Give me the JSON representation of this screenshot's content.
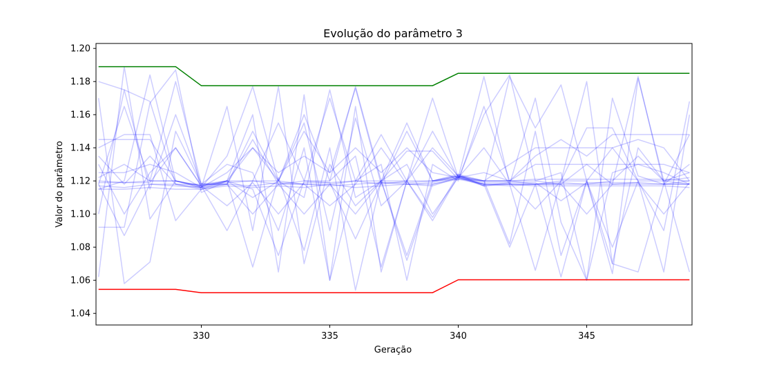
{
  "chart_data": {
    "type": "line",
    "title": "Evolução do parâmetro 3",
    "xlabel": "Geração",
    "ylabel": "Valor do parâmetro",
    "xlim": [
      325.9,
      349.1
    ],
    "ylim": [
      1.033,
      1.203
    ],
    "x_ticks": [
      330,
      335,
      340,
      345
    ],
    "x_tick_labels": [
      "330",
      "335",
      "340",
      "345"
    ],
    "y_ticks": [
      1.04,
      1.06,
      1.08,
      1.1,
      1.12,
      1.14,
      1.16,
      1.18,
      1.2
    ],
    "y_tick_labels": [
      "1.04",
      "1.06",
      "1.08",
      "1.10",
      "1.12",
      "1.14",
      "1.16",
      "1.18",
      "1.20"
    ],
    "grid": false,
    "x": [
      326,
      327,
      328,
      329,
      330,
      331,
      332,
      333,
      334,
      335,
      336,
      337,
      338,
      339,
      340,
      341,
      342,
      343,
      344,
      345,
      346,
      347,
      348,
      349
    ],
    "series": [
      {
        "role": "upper-bound",
        "color": "#008000",
        "values": [
          1.189,
          1.189,
          1.189,
          1.189,
          1.1775,
          1.1775,
          1.1775,
          1.1775,
          1.1775,
          1.1775,
          1.1775,
          1.1775,
          1.1775,
          1.1775,
          1.185,
          1.185,
          1.185,
          1.185,
          1.185,
          1.185,
          1.185,
          1.185,
          1.185,
          1.185
        ]
      },
      {
        "role": "lower-bound",
        "color": "#ff0000",
        "values": [
          1.0545,
          1.0545,
          1.0545,
          1.0545,
          1.0525,
          1.0525,
          1.0525,
          1.0525,
          1.0525,
          1.0525,
          1.0525,
          1.0525,
          1.0525,
          1.0525,
          1.0603,
          1.0603,
          1.0603,
          1.0603,
          1.0603,
          1.0603,
          1.0603,
          1.0603,
          1.0603,
          1.0603
        ]
      },
      {
        "role": "individual",
        "color": "#0000ff",
        "values": [
          1.117,
          1.116,
          1.118,
          1.117,
          1.116,
          1.118,
          1.117,
          1.119,
          1.118,
          1.117,
          1.118,
          1.119,
          1.118,
          1.119,
          1.123,
          1.118,
          1.117,
          1.118,
          1.119,
          1.118,
          1.118,
          1.119,
          1.118,
          1.118
        ]
      },
      {
        "role": "individual",
        "color": "#0000ff",
        "values": [
          1.115,
          1.115,
          1.116,
          1.115,
          1.115,
          1.117,
          1.116,
          1.117,
          1.116,
          1.118,
          1.116,
          1.117,
          1.118,
          1.117,
          1.122,
          1.117,
          1.118,
          1.117,
          1.117,
          1.117,
          1.117,
          1.117,
          1.117,
          1.116
        ]
      },
      {
        "role": "individual",
        "color": "#0000ff",
        "values": [
          1.12,
          1.119,
          1.12,
          1.12,
          1.117,
          1.119,
          1.12,
          1.118,
          1.12,
          1.119,
          1.12,
          1.118,
          1.12,
          1.12,
          1.124,
          1.12,
          1.12,
          1.121,
          1.121,
          1.121,
          1.121,
          1.121,
          1.121,
          1.12
        ]
      },
      {
        "role": "individual",
        "color": "#0000ff",
        "values": [
          1.18,
          1.175,
          1.168,
          1.118,
          1.116,
          1.135,
          1.177,
          1.12,
          1.15,
          1.125,
          1.176,
          1.118,
          1.15,
          1.12,
          1.121,
          1.16,
          1.184,
          1.12,
          1.118,
          1.13,
          1.118,
          1.183,
          1.118,
          1.13
        ]
      },
      {
        "role": "individual",
        "color": "#0000ff",
        "values": [
          1.062,
          1.189,
          1.097,
          1.12,
          1.116,
          1.12,
          1.068,
          1.122,
          1.078,
          1.14,
          1.054,
          1.12,
          1.072,
          1.118,
          1.122,
          1.118,
          1.08,
          1.118,
          1.062,
          1.12,
          1.07,
          1.065,
          1.118,
          1.12
        ]
      },
      {
        "role": "individual",
        "color": "#0000ff",
        "values": [
          1.092,
          1.092,
          1.167,
          1.187,
          1.113,
          1.12,
          1.16,
          1.065,
          1.172,
          1.06,
          1.165,
          1.065,
          1.12,
          1.17,
          1.122,
          1.183,
          1.118,
          1.17,
          1.095,
          1.06,
          1.17,
          1.123,
          1.118,
          1.148
        ]
      },
      {
        "role": "individual",
        "color": "#0000ff",
        "values": [
          1.17,
          1.058,
          1.071,
          1.15,
          1.118,
          1.118,
          1.15,
          1.12,
          1.155,
          1.09,
          1.158,
          1.105,
          1.12,
          1.14,
          1.123,
          1.117,
          1.183,
          1.152,
          1.178,
          1.12,
          1.14,
          1.12,
          1.065,
          1.16
        ]
      },
      {
        "role": "individual",
        "color": "#0000ff",
        "values": [
          1.115,
          1.12,
          1.184,
          1.12,
          1.116,
          1.165,
          1.09,
          1.177,
          1.07,
          1.13,
          1.105,
          1.12,
          1.075,
          1.12,
          1.122,
          1.14,
          1.118,
          1.066,
          1.12,
          1.18,
          1.07,
          1.14,
          1.12,
          1.065
        ]
      },
      {
        "role": "individual",
        "color": "#0000ff",
        "values": [
          1.14,
          1.148,
          1.148,
          1.096,
          1.115,
          1.12,
          1.115,
          1.075,
          1.12,
          1.17,
          1.12,
          1.148,
          1.12,
          1.096,
          1.123,
          1.12,
          1.082,
          1.15,
          1.075,
          1.12,
          1.064,
          1.182,
          1.12,
          1.122
        ]
      },
      {
        "role": "individual",
        "color": "#0000ff",
        "values": [
          1.1,
          1.175,
          1.115,
          1.16,
          1.118,
          1.13,
          1.125,
          1.09,
          1.14,
          1.06,
          1.12,
          1.13,
          1.06,
          1.13,
          1.12,
          1.165,
          1.12,
          1.12,
          1.125,
          1.06,
          1.125,
          1.13,
          1.125,
          1.118
        ]
      },
      {
        "role": "individual",
        "color": "#0000ff",
        "values": [
          1.13,
          1.1,
          1.125,
          1.14,
          1.117,
          1.12,
          1.14,
          1.12,
          1.16,
          1.12,
          1.135,
          1.068,
          1.12,
          1.15,
          1.122,
          1.12,
          1.13,
          1.14,
          1.14,
          1.14,
          1.14,
          1.145,
          1.14,
          1.12
        ]
      },
      {
        "role": "individual",
        "color": "#0000ff",
        "values": [
          1.122,
          1.13,
          1.12,
          1.18,
          1.118,
          1.12,
          1.11,
          1.12,
          1.11,
          1.175,
          1.11,
          1.12,
          1.138,
          1.138,
          1.121,
          1.12,
          1.12,
          1.13,
          1.13,
          1.13,
          1.13,
          1.13,
          1.13,
          1.125
        ]
      },
      {
        "role": "individual",
        "color": "#0000ff",
        "values": [
          1.145,
          1.145,
          1.145,
          1.12,
          1.117,
          1.12,
          1.12,
          1.155,
          1.12,
          1.12,
          1.177,
          1.12,
          1.12,
          1.098,
          1.124,
          1.117,
          1.119,
          1.103,
          1.12,
          1.12,
          1.08,
          1.12,
          1.09,
          1.168
        ]
      },
      {
        "role": "individual",
        "color": "#0000ff",
        "values": [
          1.118,
          1.087,
          1.118,
          1.118,
          1.115,
          1.118,
          1.1,
          1.118,
          1.1,
          1.118,
          1.1,
          1.12,
          1.13,
          1.1,
          1.122,
          1.118,
          1.118,
          1.118,
          1.118,
          1.1,
          1.118,
          1.118,
          1.118,
          1.118
        ]
      },
      {
        "role": "individual",
        "color": "#0000ff",
        "values": [
          1.125,
          1.125,
          1.13,
          1.125,
          1.116,
          1.125,
          1.14,
          1.125,
          1.135,
          1.125,
          1.14,
          1.125,
          1.14,
          1.125,
          1.122,
          1.125,
          1.12,
          1.135,
          1.145,
          1.135,
          1.148,
          1.148,
          1.148,
          1.148
        ]
      },
      {
        "role": "individual",
        "color": "#0000ff",
        "values": [
          1.118,
          1.165,
          1.12,
          1.12,
          1.117,
          1.09,
          1.12,
          1.12,
          1.118,
          1.118,
          1.12,
          1.12,
          1.155,
          1.12,
          1.123,
          1.12,
          1.12,
          1.118,
          1.12,
          1.152,
          1.152,
          1.12,
          1.12,
          1.125
        ]
      },
      {
        "role": "individual",
        "color": "#0000ff",
        "values": [
          1.135,
          1.118,
          1.135,
          1.118,
          1.118,
          1.118,
          1.145,
          1.118,
          1.118,
          1.105,
          1.118,
          1.14,
          1.118,
          1.118,
          1.121,
          1.118,
          1.118,
          1.118,
          1.118,
          1.118,
          1.12,
          1.135,
          1.12,
          1.118
        ]
      },
      {
        "role": "individual",
        "color": "#0000ff",
        "values": [
          1.119,
          1.119,
          1.119,
          1.14,
          1.117,
          1.105,
          1.119,
          1.1,
          1.119,
          1.119,
          1.085,
          1.119,
          1.119,
          1.12,
          1.123,
          1.119,
          1.119,
          1.119,
          1.108,
          1.119,
          1.119,
          1.119,
          1.1,
          1.119
        ]
      }
    ]
  }
}
